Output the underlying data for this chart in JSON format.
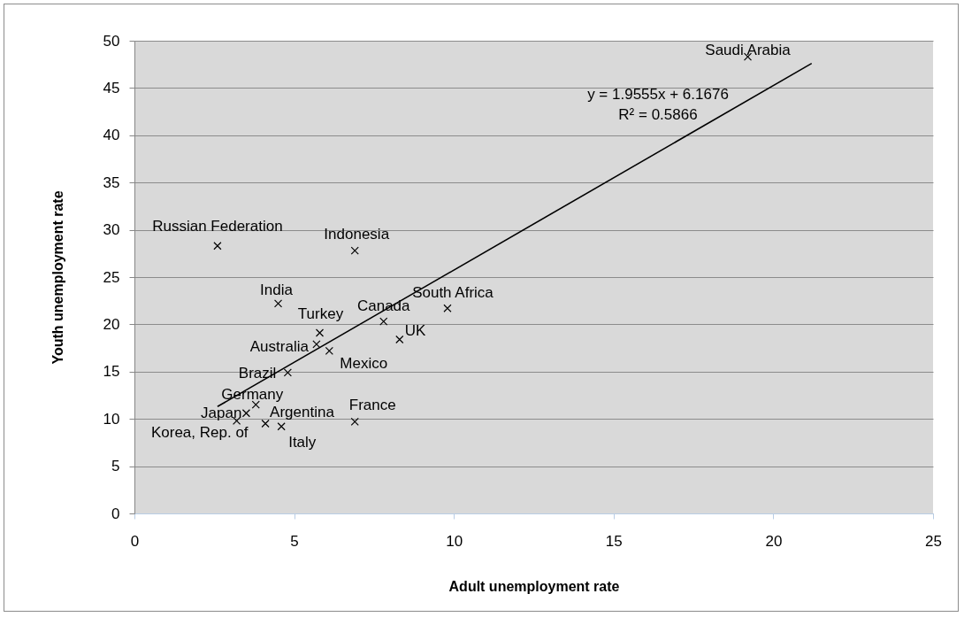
{
  "chart_data": {
    "type": "scatter",
    "xlabel": "Adult unemployment rate",
    "ylabel": "Youth unemployment rate",
    "xlim": [
      0,
      25
    ],
    "xticks": [
      0,
      5,
      10,
      15,
      20,
      25
    ],
    "ylim": [
      0,
      50
    ],
    "yticks": [
      0,
      5,
      10,
      15,
      20,
      25,
      30,
      35,
      40,
      45,
      50
    ],
    "grid": "y",
    "marker": "cross",
    "series": [
      {
        "name": "Russian Federation",
        "color": "#000000",
        "x": [
          2.6
        ],
        "values": [
          28.3
        ]
      },
      {
        "name": "Indonesia",
        "color": "#000000",
        "x": [
          6.9
        ],
        "values": [
          27.8
        ]
      },
      {
        "name": "India",
        "color": "#000000",
        "x": [
          4.5
        ],
        "values": [
          22.2
        ]
      },
      {
        "name": "Turkey",
        "color": "#000000",
        "x": [
          5.8
        ],
        "values": [
          19.1
        ]
      },
      {
        "name": "Australia",
        "color": "#000000",
        "x": [
          5.7
        ],
        "values": [
          17.9
        ]
      },
      {
        "name": "Mexico",
        "color": "#000000",
        "x": [
          6.1
        ],
        "values": [
          17.2
        ]
      },
      {
        "name": "Canada",
        "color": "#000000",
        "x": [
          7.8
        ],
        "values": [
          20.3
        ]
      },
      {
        "name": "UK",
        "color": "#000000",
        "x": [
          8.3
        ],
        "values": [
          18.4
        ]
      },
      {
        "name": "South Africa",
        "color": "#000000",
        "x": [
          9.8
        ],
        "values": [
          21.7
        ]
      },
      {
        "name": "Brazil",
        "color": "#000000",
        "x": [
          4.8
        ],
        "values": [
          14.9
        ]
      },
      {
        "name": "Germany",
        "color": "#000000",
        "x": [
          3.8
        ],
        "values": [
          11.5
        ]
      },
      {
        "name": "Japan",
        "color": "#000000",
        "x": [
          3.5
        ],
        "values": [
          10.6
        ]
      },
      {
        "name": "Korea, Rep. of",
        "color": "#000000",
        "x": [
          3.2
        ],
        "values": [
          9.8
        ]
      },
      {
        "name": "Argentina",
        "color": "#000000",
        "x": [
          4.1
        ],
        "values": [
          9.5
        ]
      },
      {
        "name": "Italy",
        "color": "#000000",
        "x": [
          4.6
        ],
        "values": [
          9.2
        ]
      },
      {
        "name": "France",
        "color": "#000000",
        "x": [
          6.9
        ],
        "values": [
          9.7
        ]
      },
      {
        "name": "Saudi Arabia",
        "color": "#000000",
        "x": [
          19.2
        ],
        "values": [
          48.3
        ]
      },
      {
        "type": "line",
        "color": "#000000",
        "marker": "none",
        "x": [
          2.6,
          21.2
        ],
        "values": [
          11.3,
          47.6
        ]
      }
    ],
    "annotations": [
      "y = 1.9555x + 6.1676",
      "R² = 0.5866"
    ]
  }
}
